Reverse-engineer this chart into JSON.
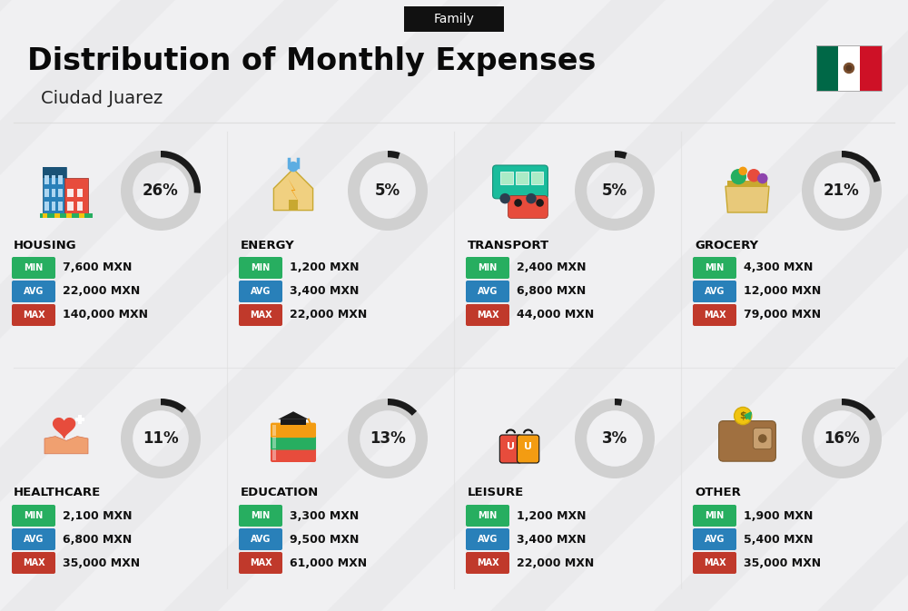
{
  "title": "Distribution of Monthly Expenses",
  "subtitle": "Ciudad Juarez",
  "tag": "Family",
  "background_color": "#f0f0f2",
  "categories": [
    {
      "name": "HOUSING",
      "percent": 26,
      "min": "7,600 MXN",
      "avg": "22,000 MXN",
      "max": "140,000 MXN",
      "row": 0,
      "col": 0
    },
    {
      "name": "ENERGY",
      "percent": 5,
      "min": "1,200 MXN",
      "avg": "3,400 MXN",
      "max": "22,000 MXN",
      "row": 0,
      "col": 1
    },
    {
      "name": "TRANSPORT",
      "percent": 5,
      "min": "2,400 MXN",
      "avg": "6,800 MXN",
      "max": "44,000 MXN",
      "row": 0,
      "col": 2
    },
    {
      "name": "GROCERY",
      "percent": 21,
      "min": "4,300 MXN",
      "avg": "12,000 MXN",
      "max": "79,000 MXN",
      "row": 0,
      "col": 3
    },
    {
      "name": "HEALTHCARE",
      "percent": 11,
      "min": "2,100 MXN",
      "avg": "6,800 MXN",
      "max": "35,000 MXN",
      "row": 1,
      "col": 0
    },
    {
      "name": "EDUCATION",
      "percent": 13,
      "min": "3,300 MXN",
      "avg": "9,500 MXN",
      "max": "61,000 MXN",
      "row": 1,
      "col": 1
    },
    {
      "name": "LEISURE",
      "percent": 3,
      "min": "1,200 MXN",
      "avg": "3,400 MXN",
      "max": "22,000 MXN",
      "row": 1,
      "col": 2
    },
    {
      "name": "OTHER",
      "percent": 16,
      "min": "1,900 MXN",
      "avg": "5,400 MXN",
      "max": "35,000 MXN",
      "row": 1,
      "col": 3
    }
  ],
  "min_color": "#27ae60",
  "avg_color": "#2980b9",
  "max_color": "#c0392b",
  "label_color": "#ffffff",
  "arc_dark_color": "#1a1a1a",
  "arc_light_color": "#d0d0d0",
  "title_color": "#0a0a0a",
  "subtitle_color": "#222222",
  "tag_bg": "#111111",
  "tag_color": "#ffffff",
  "category_name_color": "#0a0a0a",
  "value_text_color": "#111111",
  "stripe_color": "#e8e8ea",
  "divider_color": "#dddddd"
}
